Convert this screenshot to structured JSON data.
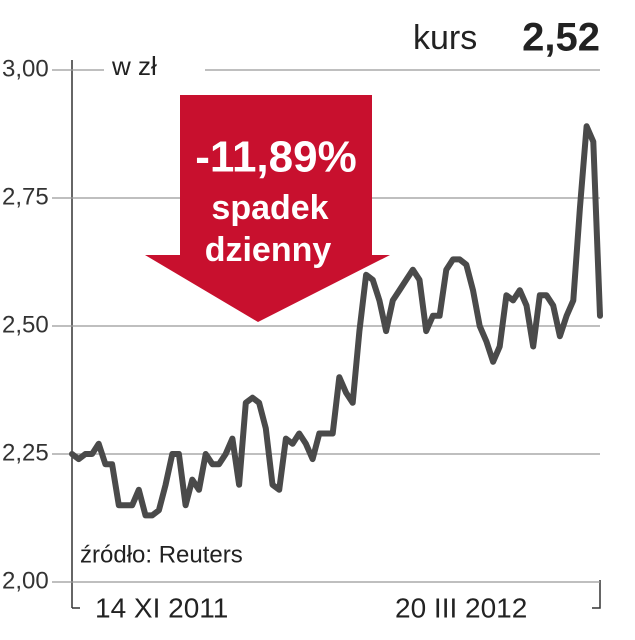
{
  "chart_data": {
    "type": "line",
    "title": "kurs",
    "current_value": "2,52",
    "unit_label": "w zł",
    "badge": {
      "change": "-11,89%",
      "line1": "spadek",
      "line2": "dzienny"
    },
    "source": "źródło: Reuters",
    "x_start_label": "14 XI 2011",
    "x_end_label": "20 III 2012",
    "color": "#4a4a4a",
    "badge_color": "#c8102e",
    "grid": true,
    "ylim": [
      2,
      3
    ],
    "yticks": [
      {
        "value": 2,
        "label": "2,00"
      },
      {
        "value": 2.25,
        "label": "2,25"
      },
      {
        "value": 2.5,
        "label": "2,50"
      },
      {
        "value": 2.75,
        "label": "2,75"
      },
      {
        "value": 3,
        "label": "3,00"
      }
    ],
    "values": [
      2.25,
      2.24,
      2.25,
      2.25,
      2.27,
      2.23,
      2.23,
      2.15,
      2.15,
      2.15,
      2.18,
      2.13,
      2.13,
      2.14,
      2.19,
      2.25,
      2.25,
      2.15,
      2.2,
      2.18,
      2.25,
      2.23,
      2.23,
      2.25,
      2.28,
      2.19,
      2.35,
      2.36,
      2.35,
      2.3,
      2.19,
      2.18,
      2.28,
      2.27,
      2.29,
      2.27,
      2.24,
      2.29,
      2.29,
      2.29,
      2.4,
      2.37,
      2.35,
      2.49,
      2.6,
      2.59,
      2.55,
      2.49,
      2.55,
      2.57,
      2.59,
      2.61,
      2.59,
      2.49,
      2.52,
      2.52,
      2.61,
      2.63,
      2.63,
      2.62,
      2.57,
      2.5,
      2.47,
      2.43,
      2.46,
      2.56,
      2.55,
      2.57,
      2.54,
      2.46,
      2.56,
      2.56,
      2.54,
      2.48,
      2.52,
      2.55,
      2.73,
      2.89,
      2.86,
      2.52
    ]
  }
}
